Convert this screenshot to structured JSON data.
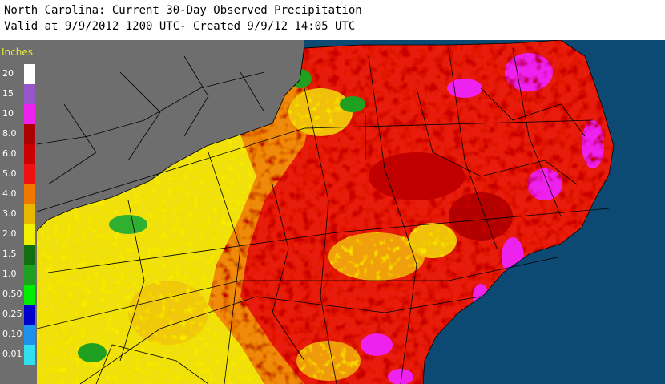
{
  "header": {
    "title": "North Carolina: Current 30-Day Observed Precipitation",
    "subtitle": "Valid at 9/9/2012 1200 UTC- Created 9/9/12 14:05 UTC"
  },
  "legend": {
    "unit": "Inches",
    "entries": [
      {
        "label": "20",
        "color": "#ffffff"
      },
      {
        "label": "15",
        "color": "#9955cc"
      },
      {
        "label": "10",
        "color": "#ee22ee"
      },
      {
        "label": "8.0",
        "color": "#aa0000"
      },
      {
        "label": "6.0",
        "color": "#cc0000"
      },
      {
        "label": "5.0",
        "color": "#ee1111"
      },
      {
        "label": "4.0",
        "color": "#f07800"
      },
      {
        "label": "3.0",
        "color": "#e8b800"
      },
      {
        "label": "2.0",
        "color": "#f0f000"
      },
      {
        "label": "1.5",
        "color": "#107010"
      },
      {
        "label": "1.0",
        "color": "#20a020"
      },
      {
        "label": "0.50",
        "color": "#00ee00"
      },
      {
        "label": "0.25",
        "color": "#0000cc"
      },
      {
        "label": "0.10",
        "color": "#2090ee"
      },
      {
        "label": "0.01",
        "color": "#30e0ee"
      }
    ]
  },
  "map": {
    "ocean_color": "#0d4a73",
    "no_data_color": "#6e6e6e",
    "boundary_color": "#000000"
  }
}
